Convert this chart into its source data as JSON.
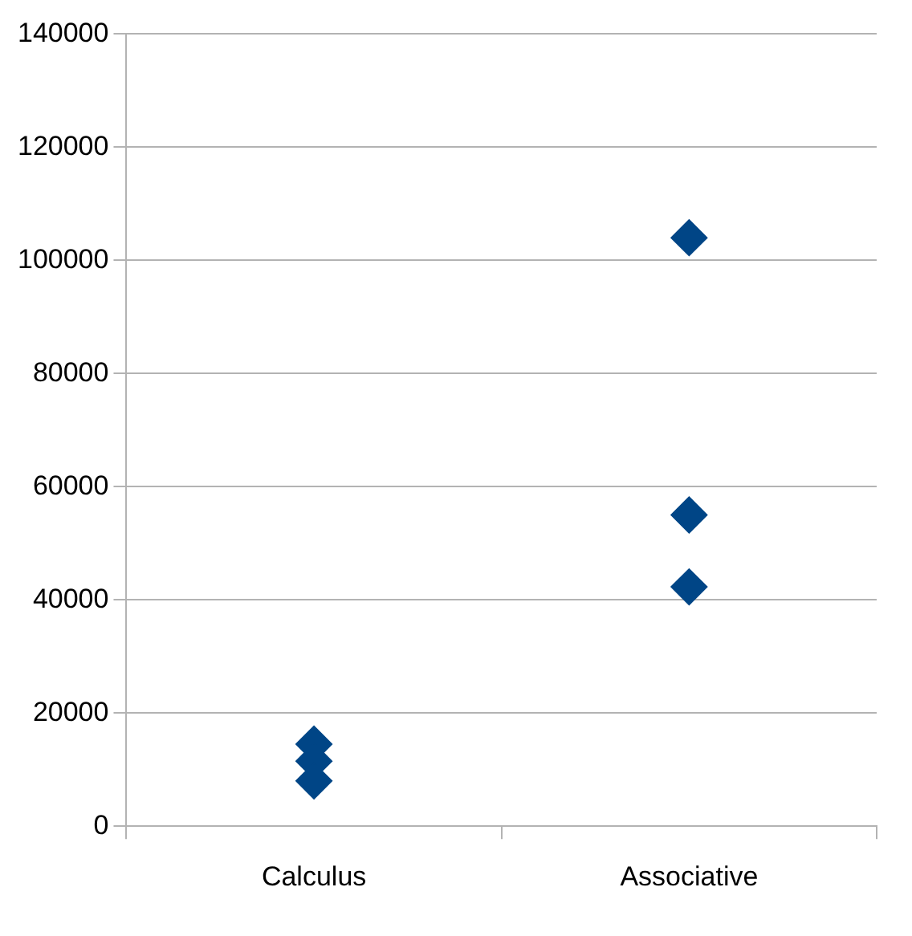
{
  "chart_data": {
    "type": "scatter",
    "categories": [
      "Calculus",
      "Associative"
    ],
    "series": [
      {
        "type": "scatter",
        "color": "#004586",
        "x": [
          "Calculus",
          "Calculus",
          "Calculus",
          "Associative",
          "Associative",
          "Associative"
        ],
        "values": [
          14500,
          11500,
          8000,
          104000,
          55000,
          42300
        ]
      }
    ],
    "ylim": [
      0,
      140000
    ],
    "yticks": [
      0,
      20000,
      40000,
      60000,
      80000,
      100000,
      120000,
      140000
    ],
    "grid": "y",
    "legend": false,
    "marker": "diamond"
  }
}
